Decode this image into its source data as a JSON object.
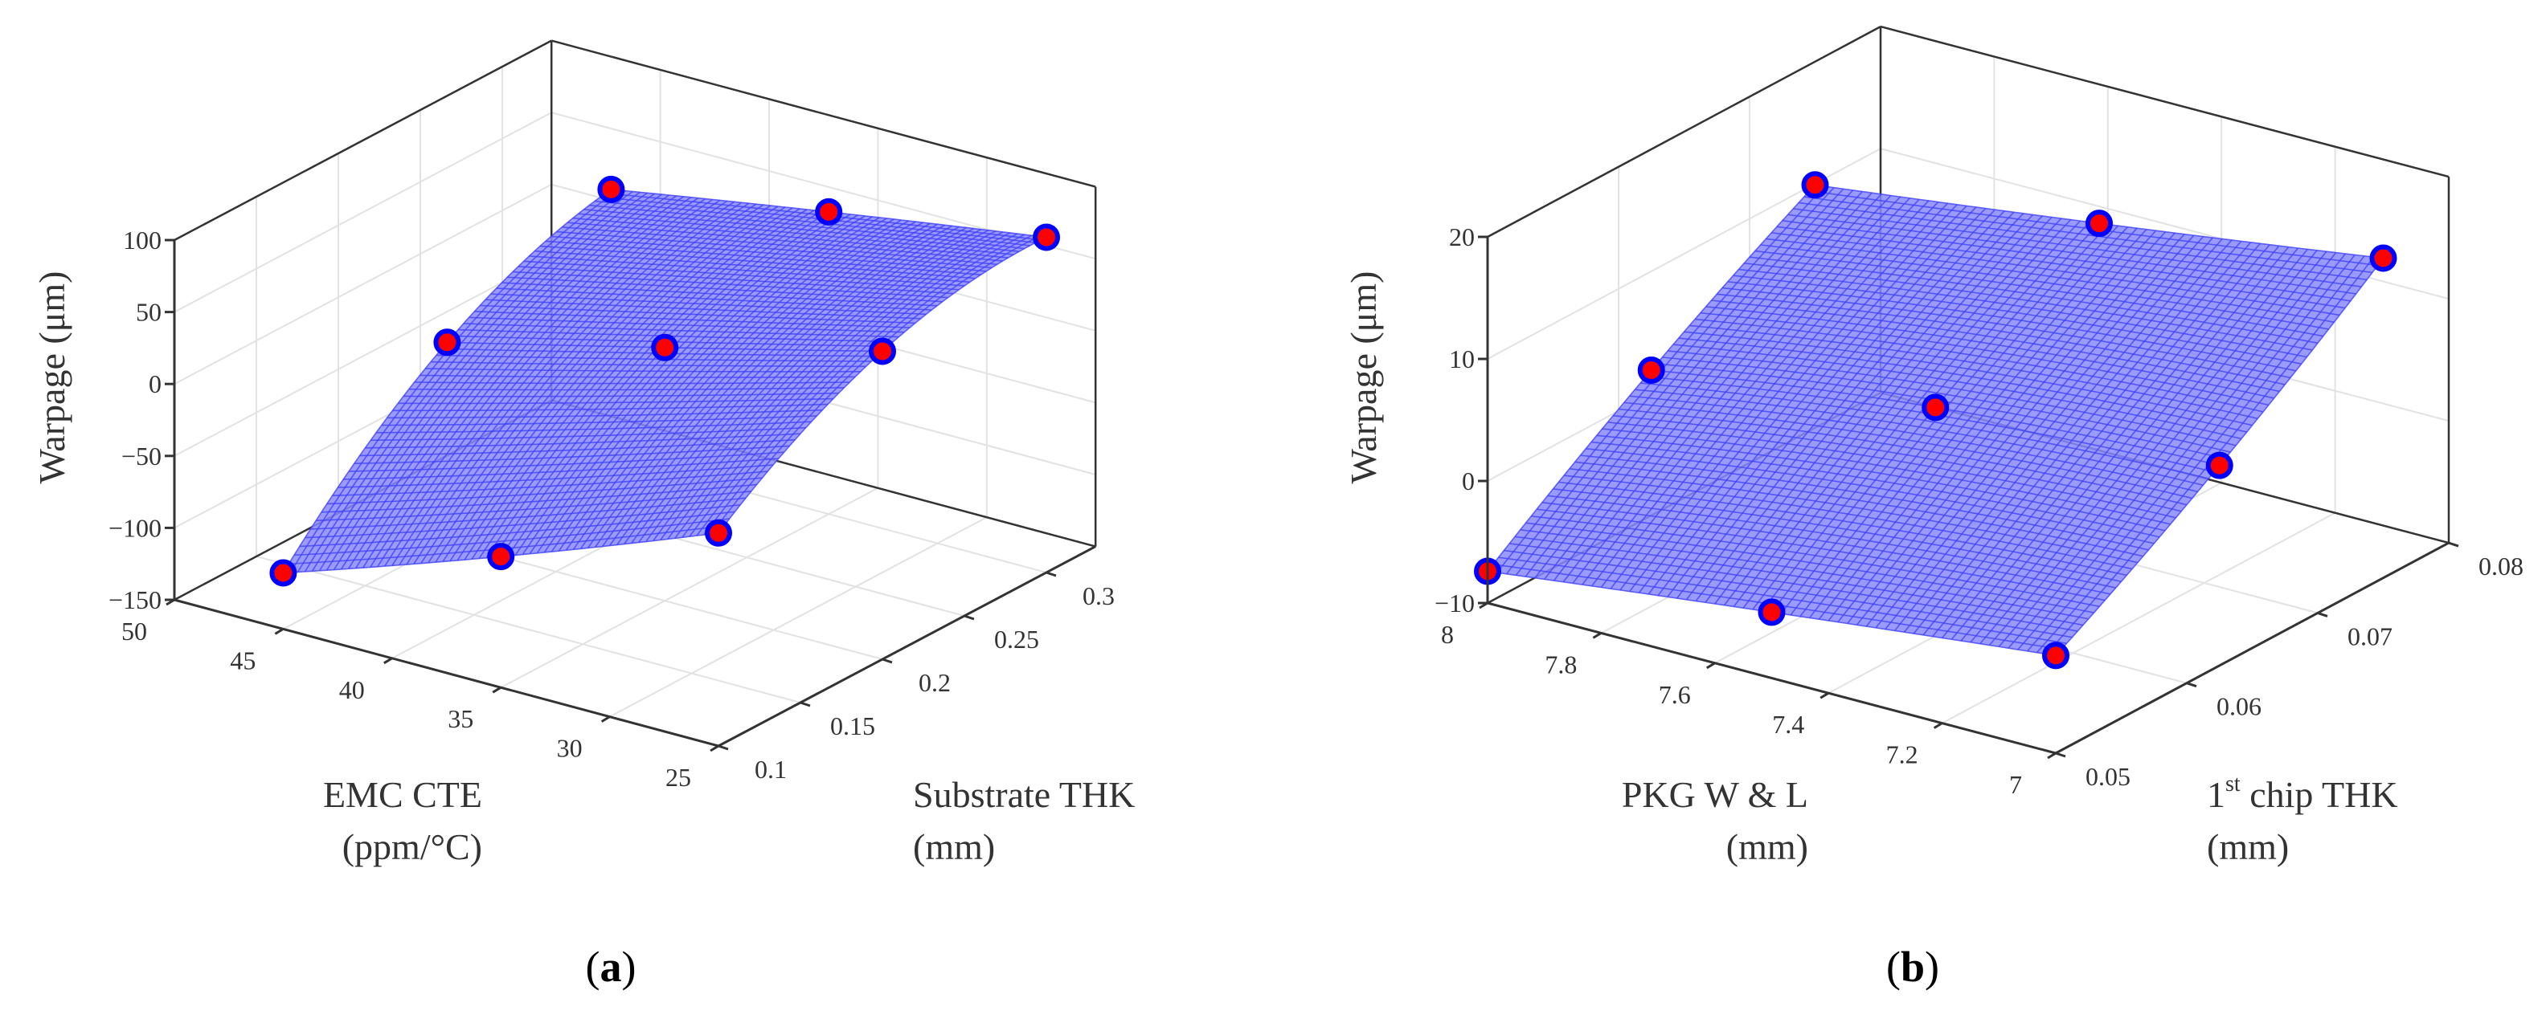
{
  "chart_data": [
    {
      "type": "surface",
      "panel_label": {
        "open": "(",
        "letter": "a",
        "close": ")"
      },
      "zlabel": "Warpage (μm)",
      "xlabel": [
        "EMC CTE",
        "(ppm/°C)"
      ],
      "ylabel": {
        "base": "Substrate THK",
        "sup": "",
        "rest": "",
        "line2": "(mm)"
      },
      "xlim": [
        25,
        50
      ],
      "ylim": [
        0.1,
        0.33
      ],
      "zlim": [
        -150,
        100
      ],
      "xticks": [
        25,
        30,
        35,
        40,
        45,
        50
      ],
      "yticks": [
        0.1,
        0.15,
        0.2,
        0.25,
        0.3
      ],
      "zticks": [
        -150,
        -100,
        -50,
        0,
        50,
        100
      ],
      "grid": true,
      "x_levels": [
        45,
        35,
        25
      ],
      "y_levels": [
        0.1,
        0.2,
        0.3
      ],
      "z_values": [
        [
          -111,
          -11,
          35
        ],
        [
          -59,
          26,
          60
        ],
        [
          -2,
          64,
          83
        ]
      ],
      "surface_color": "#4040ff",
      "marker_fill": "#ff0000",
      "marker_edge": "#0000ff"
    },
    {
      "type": "surface",
      "panel_label": {
        "open": "(",
        "letter": "b",
        "close": ")"
      },
      "zlabel": "Warpage (μm)",
      "xlabel": [
        "PKG W & L",
        "(mm)"
      ],
      "ylabel": {
        "base": "1",
        "sup": "st",
        "rest": " chip THK",
        "line2": "(mm)"
      },
      "xlim": [
        7,
        8
      ],
      "ylim": [
        0.05,
        0.08
      ],
      "zlim": [
        -10,
        20
      ],
      "xticks": [
        7,
        7.2,
        7.4,
        7.6,
        7.8,
        8
      ],
      "yticks": [
        0.05,
        0.06,
        0.07,
        0.08
      ],
      "zticks": [
        -10,
        0,
        10,
        20
      ],
      "grid": true,
      "x_levels": [
        8,
        7.5,
        7
      ],
      "y_levels": [
        0.05,
        0.0625,
        0.075
      ],
      "z_values": [
        [
          -7.4,
          1.9,
          9.9
        ],
        [
          -4.6,
          5.0,
          12.9
        ],
        [
          -2.0,
          6.4,
          16.2
        ]
      ],
      "surface_color": "#4040ff",
      "marker_fill": "#ff0000",
      "marker_edge": "#0000ff"
    }
  ]
}
